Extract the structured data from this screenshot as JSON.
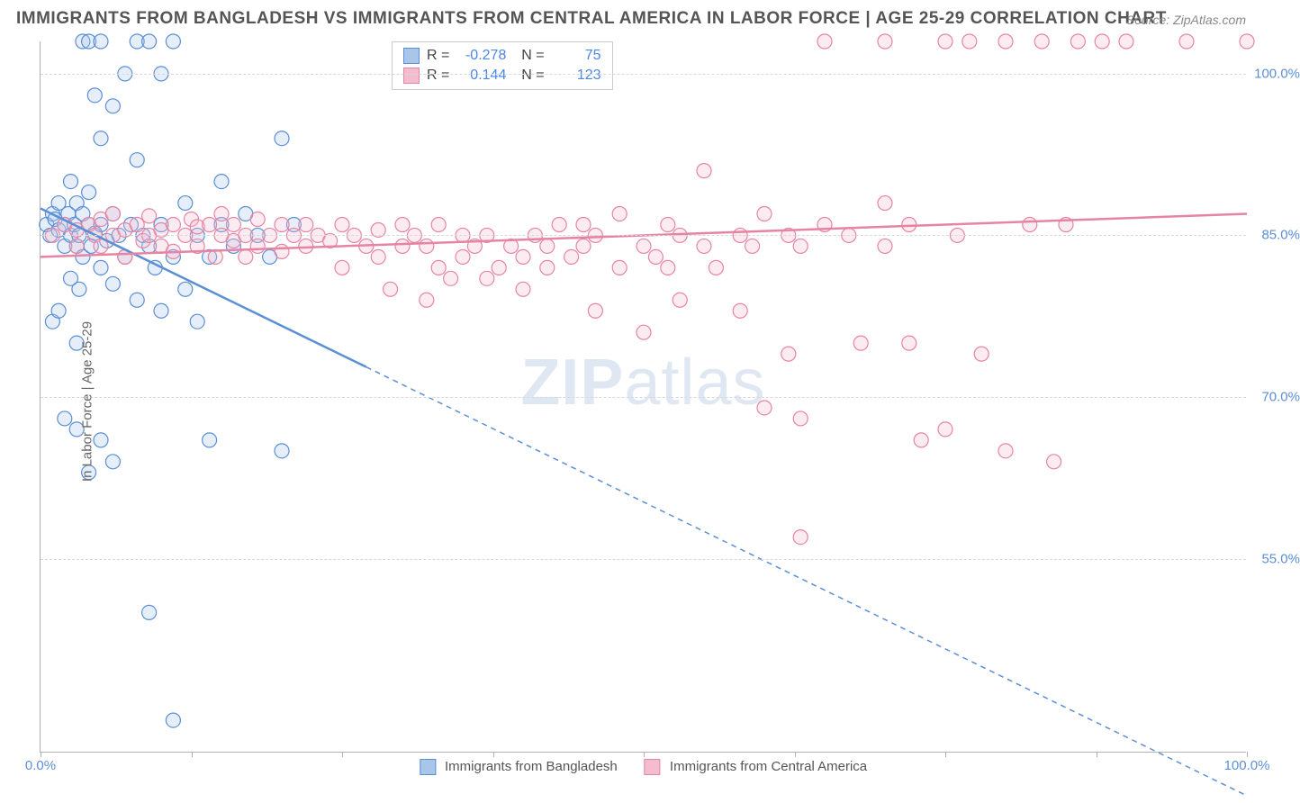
{
  "title": "IMMIGRANTS FROM BANGLADESH VS IMMIGRANTS FROM CENTRAL AMERICA IN LABOR FORCE | AGE 25-29 CORRELATION CHART",
  "source": "Source: ZipAtlas.com",
  "ylabel": "In Labor Force | Age 25-29",
  "watermark_bold": "ZIP",
  "watermark_rest": "atlas",
  "chart": {
    "type": "scatter",
    "xlim": [
      0,
      100
    ],
    "ylim": [
      37,
      103
    ],
    "yticks": [
      55.0,
      70.0,
      85.0,
      100.0
    ],
    "ytick_labels": [
      "55.0%",
      "70.0%",
      "85.0%",
      "100.0%"
    ],
    "xticks": [
      0,
      12.5,
      25,
      37.5,
      50,
      62.5,
      75,
      87.5,
      100
    ],
    "xtick_labels_show": {
      "0": "0.0%",
      "100": "100.0%"
    },
    "background_color": "#ffffff",
    "grid_color": "#d8d8d8",
    "marker_radius": 8,
    "marker_stroke_width": 1.2,
    "marker_fill_opacity": 0.3,
    "series": [
      {
        "name": "Immigrants from Bangladesh",
        "color_stroke": "#5b8fd6",
        "color_fill": "#a8c6ea",
        "R": "-0.278",
        "N": "75",
        "trend": {
          "y_at_x0": 87.5,
          "y_at_x100": 33.0,
          "solid_until_x": 27
        },
        "points": [
          [
            0.5,
            86
          ],
          [
            0.8,
            85
          ],
          [
            1,
            87
          ],
          [
            1.2,
            86.5
          ],
          [
            1.5,
            85.5
          ],
          [
            1.5,
            88
          ],
          [
            2,
            86
          ],
          [
            2,
            84
          ],
          [
            2.3,
            87
          ],
          [
            2.5,
            85
          ],
          [
            2.5,
            90
          ],
          [
            2.8,
            86
          ],
          [
            3,
            84
          ],
          [
            3,
            88
          ],
          [
            3.2,
            85
          ],
          [
            3.5,
            87
          ],
          [
            3.5,
            83
          ],
          [
            4,
            86
          ],
          [
            4,
            89
          ],
          [
            4.2,
            84
          ],
          [
            4.5,
            85.2
          ],
          [
            4.5,
            98
          ],
          [
            5,
            86
          ],
          [
            5,
            82
          ],
          [
            5,
            94
          ],
          [
            5.5,
            84.5
          ],
          [
            6,
            87
          ],
          [
            6,
            80.5
          ],
          [
            6,
            97
          ],
          [
            6.5,
            85
          ],
          [
            7,
            83
          ],
          [
            7,
            100
          ],
          [
            7.5,
            86
          ],
          [
            8,
            79
          ],
          [
            8,
            92
          ],
          [
            8,
            103
          ],
          [
            8.5,
            85
          ],
          [
            9,
            84
          ],
          [
            9,
            103
          ],
          [
            9.5,
            82
          ],
          [
            10,
            86
          ],
          [
            10,
            78
          ],
          [
            10,
            100
          ],
          [
            11,
            103
          ],
          [
            11,
            83
          ],
          [
            12,
            80
          ],
          [
            12,
            88
          ],
          [
            13,
            85
          ],
          [
            13,
            77
          ],
          [
            14,
            83
          ],
          [
            15,
            86
          ],
          [
            15,
            90
          ],
          [
            16,
            84
          ],
          [
            17,
            87
          ],
          [
            18,
            85
          ],
          [
            19,
            83
          ],
          [
            20,
            94
          ],
          [
            21,
            86
          ],
          [
            2,
            68
          ],
          [
            3,
            67
          ],
          [
            5,
            66
          ],
          [
            4,
            63
          ],
          [
            6,
            64
          ],
          [
            14,
            66
          ],
          [
            20,
            65
          ],
          [
            1,
            77
          ],
          [
            3,
            75
          ],
          [
            9,
            50
          ],
          [
            11,
            40
          ],
          [
            3.5,
            103
          ],
          [
            4,
            103
          ],
          [
            5,
            103
          ],
          [
            1.5,
            78
          ],
          [
            2.5,
            81
          ],
          [
            3.2,
            80
          ]
        ]
      },
      {
        "name": "Immigrants from Central America",
        "color_stroke": "#e685a3",
        "color_fill": "#f4bccf",
        "R": "0.144",
        "N": "123",
        "trend": {
          "y_at_x0": 83.0,
          "y_at_x100": 87.0,
          "solid_until_x": 100
        },
        "points": [
          [
            1,
            85
          ],
          [
            2,
            86
          ],
          [
            3,
            85.5
          ],
          [
            3,
            84
          ],
          [
            4,
            86
          ],
          [
            4.5,
            85
          ],
          [
            5,
            86.5
          ],
          [
            5,
            84
          ],
          [
            6,
            85
          ],
          [
            6,
            87
          ],
          [
            7,
            85.5
          ],
          [
            7,
            83
          ],
          [
            8,
            86
          ],
          [
            8.5,
            84.5
          ],
          [
            9,
            85
          ],
          [
            9,
            86.8
          ],
          [
            10,
            84
          ],
          [
            10,
            85.5
          ],
          [
            11,
            86
          ],
          [
            11,
            83.5
          ],
          [
            12,
            85
          ],
          [
            12.5,
            86.5
          ],
          [
            13,
            84
          ],
          [
            13,
            85.8
          ],
          [
            14,
            86
          ],
          [
            14.5,
            83
          ],
          [
            15,
            85
          ],
          [
            15,
            87
          ],
          [
            16,
            84.5
          ],
          [
            16,
            86
          ],
          [
            17,
            85
          ],
          [
            17,
            83
          ],
          [
            18,
            86.5
          ],
          [
            18,
            84
          ],
          [
            19,
            85
          ],
          [
            20,
            86
          ],
          [
            20,
            83.5
          ],
          [
            21,
            85
          ],
          [
            22,
            84
          ],
          [
            22,
            86
          ],
          [
            23,
            85
          ],
          [
            24,
            84.5
          ],
          [
            25,
            86
          ],
          [
            25,
            82
          ],
          [
            26,
            85
          ],
          [
            27,
            84
          ],
          [
            28,
            85.5
          ],
          [
            28,
            83
          ],
          [
            29,
            80
          ],
          [
            30,
            84
          ],
          [
            30,
            86
          ],
          [
            31,
            85
          ],
          [
            32,
            79
          ],
          [
            32,
            84
          ],
          [
            33,
            86
          ],
          [
            33,
            82
          ],
          [
            34,
            81
          ],
          [
            35,
            85
          ],
          [
            35,
            83
          ],
          [
            36,
            84
          ],
          [
            37,
            81
          ],
          [
            37,
            85
          ],
          [
            38,
            82
          ],
          [
            39,
            84
          ],
          [
            40,
            83
          ],
          [
            40,
            80
          ],
          [
            41,
            85
          ],
          [
            42,
            84
          ],
          [
            42,
            82
          ],
          [
            43,
            86
          ],
          [
            44,
            83
          ],
          [
            45,
            84
          ],
          [
            46,
            78
          ],
          [
            46,
            85
          ],
          [
            48,
            82
          ],
          [
            48,
            87
          ],
          [
            50,
            84
          ],
          [
            51,
            83
          ],
          [
            52,
            86
          ],
          [
            53,
            79
          ],
          [
            53,
            85
          ],
          [
            55,
            84
          ],
          [
            55,
            91
          ],
          [
            56,
            82
          ],
          [
            58,
            85
          ],
          [
            58,
            78
          ],
          [
            59,
            84
          ],
          [
            60,
            87
          ],
          [
            60,
            69
          ],
          [
            62,
            85
          ],
          [
            62,
            74
          ],
          [
            63,
            84
          ],
          [
            63,
            68
          ],
          [
            65,
            86
          ],
          [
            65,
            103
          ],
          [
            67,
            85
          ],
          [
            68,
            75
          ],
          [
            70,
            84
          ],
          [
            70,
            103
          ],
          [
            72,
            86
          ],
          [
            73,
            66
          ],
          [
            75,
            103
          ],
          [
            76,
            85
          ],
          [
            77,
            103
          ],
          [
            78,
            74
          ],
          [
            80,
            103
          ],
          [
            80,
            65
          ],
          [
            82,
            86
          ],
          [
            83,
            103
          ],
          [
            84,
            64
          ],
          [
            85,
            86
          ],
          [
            86,
            103
          ],
          [
            88,
            103
          ],
          [
            63,
            57
          ],
          [
            50,
            76
          ],
          [
            52,
            82
          ],
          [
            45,
            86
          ],
          [
            70,
            88
          ],
          [
            90,
            103
          ],
          [
            72,
            75
          ],
          [
            75,
            67
          ],
          [
            100,
            103
          ],
          [
            95,
            103
          ]
        ]
      }
    ]
  },
  "legend_bottom": [
    {
      "label": "Immigrants from Bangladesh",
      "fill": "#a8c6ea",
      "stroke": "#5b8fd6"
    },
    {
      "label": "Immigrants from Central America",
      "fill": "#f4bccf",
      "stroke": "#e685a3"
    }
  ]
}
